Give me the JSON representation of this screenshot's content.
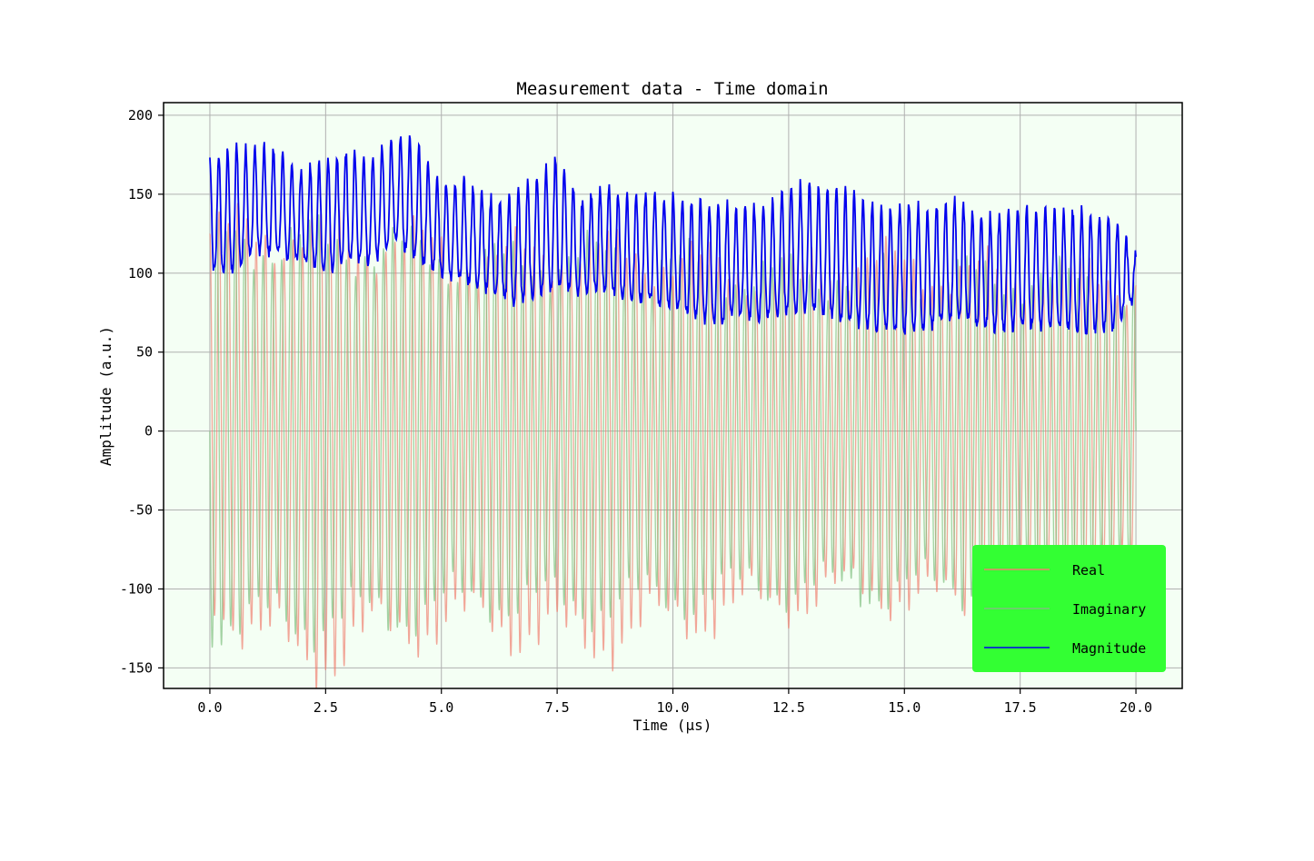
{
  "chart_data": {
    "type": "line",
    "title": "Measurement data - Time domain",
    "xlabel": "Time (μs)",
    "ylabel": "Amplitude (a.u.)",
    "xlim": [
      -1.0,
      21.0
    ],
    "ylim": [
      -163,
      208
    ],
    "xticks": [
      0.0,
      2.5,
      5.0,
      7.5,
      10.0,
      12.5,
      15.0,
      17.5,
      20.0
    ],
    "xtick_labels": [
      "0.0",
      "2.5",
      "5.0",
      "7.5",
      "10.0",
      "12.5",
      "15.0",
      "17.5",
      "20.0"
    ],
    "yticks": [
      -150,
      -100,
      -50,
      0,
      50,
      100,
      150,
      200
    ],
    "ytick_labels": [
      "-150",
      "-100",
      "-50",
      "0",
      "50",
      "100",
      "150",
      "200"
    ],
    "grid": true,
    "plot_background": "#f4fff4",
    "legend": {
      "placement": "lower-right",
      "background": "#33ff33"
    },
    "sampling": {
      "t_start": 0.0,
      "t_end": 20.0,
      "oscillation_period_us": 0.2
    },
    "series": [
      {
        "name": "Real",
        "color": "#f08070",
        "opacity": 0.7,
        "envelope_t": [
          0,
          2,
          4,
          6,
          8,
          10,
          12,
          14,
          16,
          18,
          20
        ],
        "envelope_amplitude": [
          125,
          125,
          120,
          108,
          115,
          108,
          100,
          108,
          100,
          100,
          95
        ],
        "troughs_min": [
          -105,
          -147,
          -125,
          -120,
          -135,
          -120,
          -110,
          -100,
          -110,
          -100,
          -90
        ]
      },
      {
        "name": "Imaginary",
        "color": "#7fbf7f",
        "opacity": 0.7,
        "envelope_t": [
          0,
          2,
          4,
          6,
          8,
          10,
          12,
          14,
          16,
          18,
          20
        ],
        "envelope_amplitude": [
          120,
          120,
          115,
          105,
          110,
          105,
          98,
          100,
          98,
          96,
          90
        ]
      },
      {
        "name": "Magnitude",
        "color": "#0000ee",
        "opacity": 1.0,
        "upper_t": [
          0,
          0.5,
          1,
          1.5,
          2,
          2.5,
          3,
          3.5,
          4,
          4.5,
          5,
          5.5,
          6,
          6.5,
          7,
          7.5,
          8,
          8.5,
          9,
          9.5,
          10,
          10.5,
          11,
          11.5,
          12,
          12.5,
          13,
          13.5,
          14,
          14.5,
          15,
          15.5,
          16,
          16.5,
          17,
          17.5,
          18,
          18.5,
          19,
          19.5,
          20
        ],
        "upper": [
          172,
          182,
          180,
          178,
          165,
          172,
          178,
          172,
          188,
          182,
          158,
          158,
          148,
          148,
          160,
          175,
          145,
          155,
          150,
          150,
          150,
          145,
          145,
          142,
          142,
          155,
          158,
          155,
          150,
          140,
          145,
          142,
          148,
          140,
          135,
          142,
          142,
          140,
          140,
          137,
          110
        ],
        "lower_t": [
          0,
          0.5,
          1,
          1.5,
          2,
          2.5,
          3,
          3.5,
          4,
          4.5,
          5,
          5.5,
          6,
          6.5,
          7,
          7.5,
          8,
          8.5,
          9,
          9.5,
          10,
          10.5,
          11,
          11.5,
          12,
          12.5,
          13,
          13.5,
          14,
          14.5,
          15,
          15.5,
          16,
          16.5,
          17,
          17.5,
          18,
          18.5,
          19,
          19.5,
          20
        ],
        "lower": [
          102,
          102,
          115,
          112,
          108,
          102,
          108,
          108,
          120,
          110,
          100,
          96,
          90,
          82,
          86,
          92,
          88,
          90,
          85,
          84,
          80,
          72,
          70,
          74,
          72,
          76,
          78,
          72,
          68,
          66,
          64,
          66,
          72,
          68,
          65,
          67,
          66,
          66,
          64,
          66,
          85
        ]
      }
    ]
  }
}
